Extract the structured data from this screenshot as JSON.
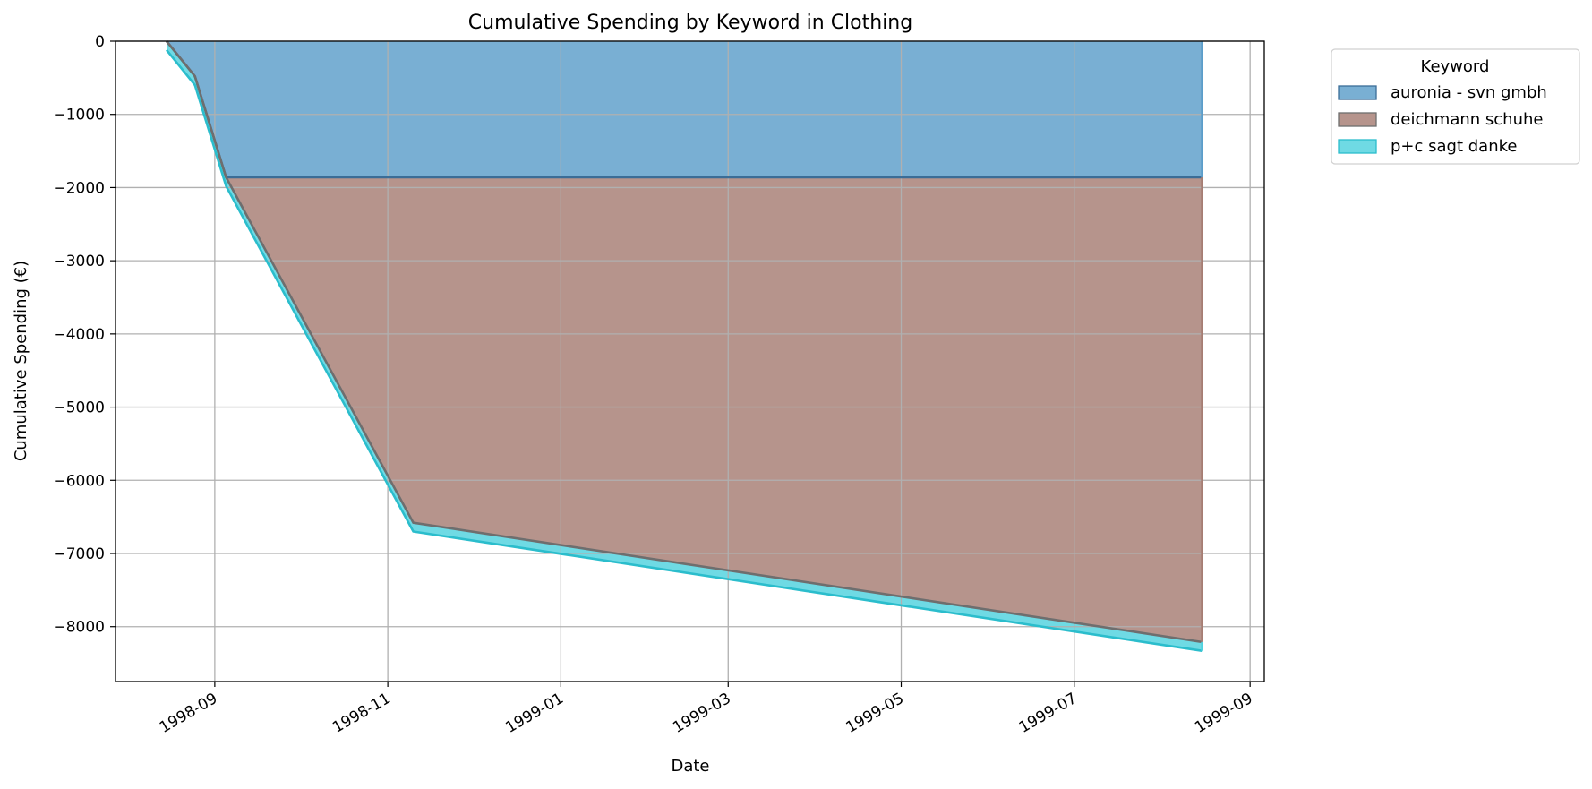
{
  "chart_data": {
    "type": "area",
    "title": "Cumulative Spending by Keyword in Clothing",
    "xlabel": "Date",
    "ylabel": "Cumulative Spending (€)",
    "xlim": [
      "1998-07-28",
      "1999-09-06"
    ],
    "ylim": [
      -8750,
      0
    ],
    "x_ticks": [
      "1998-09",
      "1998-11",
      "1999-01",
      "1999-03",
      "1999-05",
      "1999-07",
      "1999-09"
    ],
    "y_ticks": [
      0,
      -1000,
      -2000,
      -3000,
      -4000,
      -5000,
      -6000,
      -7000,
      -8000
    ],
    "grid": true,
    "legend": {
      "title": "Keyword",
      "position": "outside-right"
    },
    "dates": [
      "1998-08-15",
      "1998-08-25",
      "1998-09-05",
      "1998-11-10",
      "1999-08-15"
    ],
    "series": [
      {
        "name": "auronia - svn gmbh",
        "color": "#5b9dc9",
        "edge": "#3b6d97",
        "values": [
          0,
          -480,
          -1860,
          -1860,
          -1860
        ]
      },
      {
        "name": "deichmann schuhe",
        "color": "#a67d73",
        "edge": "#6e6e6e",
        "values": [
          0,
          0,
          0,
          -4720,
          -6350
        ]
      },
      {
        "name": "p+c sagt danke",
        "color": "#4fd2de",
        "edge": "#2bbdcc",
        "values": [
          -120,
          -120,
          -120,
          -120,
          -120
        ]
      }
    ]
  }
}
